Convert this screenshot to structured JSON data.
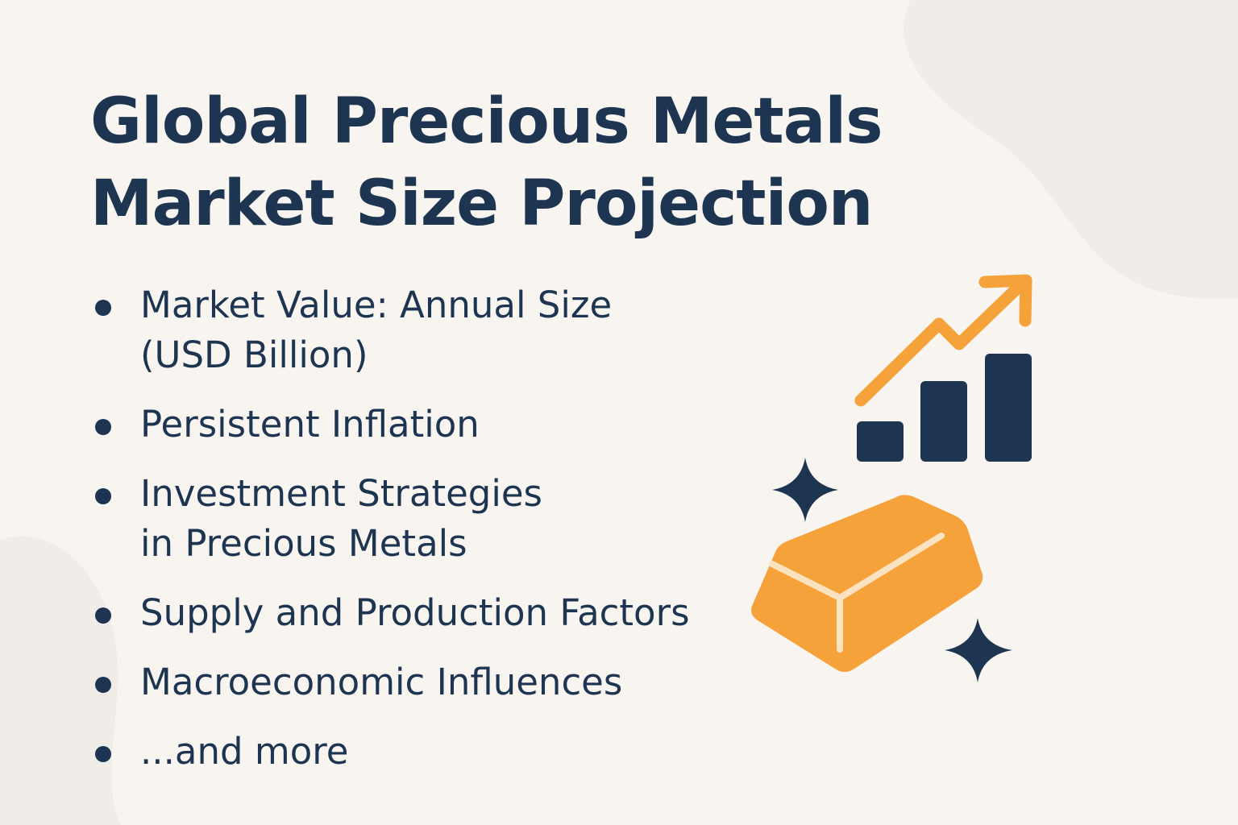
{
  "title": [
    "Global Precious Metals",
    "Market Size Projection"
  ],
  "bullets": [
    [
      "Market Value: Annual Size",
      "(USD Billion)"
    ],
    [
      "Persistent Inflation"
    ],
    [
      "Investment Strategies",
      "in Precious Metals"
    ],
    [
      "Supply and Production Factors"
    ],
    [
      "Macroeconomic Influences"
    ],
    [
      "...and more"
    ]
  ]
}
